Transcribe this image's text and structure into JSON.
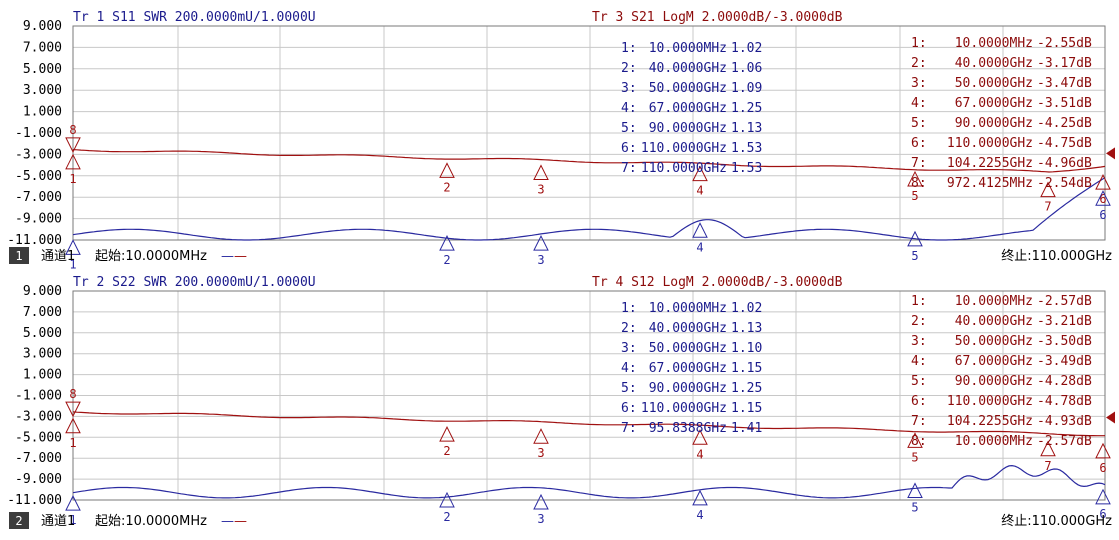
{
  "colors": {
    "trace_swr": "#2a2aa0",
    "trace_logm": "#a01010",
    "grid": "#c8c8c8",
    "frame": "#7a7a7a",
    "text_dark": "#000000",
    "blue_text": "#1a1a8c",
    "red_text": "#8c0a0a"
  },
  "y_ticks": [
    "9.000",
    "7.000",
    "5.000",
    "3.000",
    "1.000",
    "-1.000",
    "-3.000",
    "-5.000",
    "-7.000",
    "-9.000",
    "-11.000"
  ],
  "channels": [
    {
      "blue_header": "Tr 1  S11 SWR 200.0000mU/1.0000U",
      "red_header": "Tr 3  S21 LogM 2.0000dB/-3.0000dB",
      "status": {
        "badge": "1",
        "channel_label": "通道1",
        "start_label": "起始:10.0000MHz",
        "dash1": "—",
        "dash2": "—",
        "stop_label": "终止:110.000GHz"
      },
      "blue_markers": [
        {
          "n": "1:",
          "f": "10.0000MHz",
          "v": "1.02"
        },
        {
          "n": "2:",
          "f": "40.0000GHz",
          "v": "1.06"
        },
        {
          "n": "3:",
          "f": "50.0000GHz",
          "v": "1.09"
        },
        {
          "n": "4:",
          "f": "67.0000GHz",
          "v": "1.25"
        },
        {
          "n": "5:",
          "f": "90.0000GHz",
          "v": "1.13"
        },
        {
          "n": "6:",
          "f": "110.0000GHz",
          "v": "1.53"
        },
        {
          "n": "7:",
          "f": "110.0000GHz",
          "v": "1.53"
        }
      ],
      "red_markers": [
        {
          "n": "1:",
          "f": "10.0000MHz",
          "v": "-2.55dB"
        },
        {
          "n": "2:",
          "f": "40.0000GHz",
          "v": "-3.17dB"
        },
        {
          "n": "3:",
          "f": "50.0000GHz",
          "v": "-3.47dB"
        },
        {
          "n": "4:",
          "f": "67.0000GHz",
          "v": "-3.51dB"
        },
        {
          "n": "5:",
          "f": "90.0000GHz",
          "v": "-4.25dB"
        },
        {
          "n": "6:",
          "f": "110.0000GHz",
          "v": "-4.75dB"
        },
        {
          "n": "7:",
          "f": "104.2255GHz",
          "v": "-4.96dB"
        },
        {
          "n": "8:",
          "f": "972.4125MHz",
          "v": "-2.54dB"
        }
      ],
      "plot_marker_numbers": {
        "red": [
          "8",
          "1",
          "2",
          "3",
          "4",
          "5",
          "7",
          "6"
        ],
        "blue": [
          "1",
          "2",
          "3",
          "4",
          "5",
          "6"
        ]
      }
    },
    {
      "blue_header": "Tr 2  S22 SWR 200.0000mU/1.0000U",
      "red_header": "Tr 4  S12 LogM 2.0000dB/-3.0000dB",
      "status": {
        "badge": "2",
        "channel_label": "通道1",
        "start_label": "起始:10.0000MHz",
        "dash1": "—",
        "dash2": "—",
        "stop_label": "终止:110.000GHz"
      },
      "blue_markers": [
        {
          "n": "1:",
          "f": "10.0000MHz",
          "v": "1.02"
        },
        {
          "n": "2:",
          "f": "40.0000GHz",
          "v": "1.13"
        },
        {
          "n": "3:",
          "f": "50.0000GHz",
          "v": "1.10"
        },
        {
          "n": "4:",
          "f": "67.0000GHz",
          "v": "1.15"
        },
        {
          "n": "5:",
          "f": "90.0000GHz",
          "v": "1.25"
        },
        {
          "n": "6:",
          "f": "110.0000GHz",
          "v": "1.15"
        },
        {
          "n": "7:",
          "f": "95.8388GHz",
          "v": "1.41"
        }
      ],
      "red_markers": [
        {
          "n": "1:",
          "f": "10.0000MHz",
          "v": "-2.57dB"
        },
        {
          "n": "2:",
          "f": "40.0000GHz",
          "v": "-3.21dB"
        },
        {
          "n": "3:",
          "f": "50.0000GHz",
          "v": "-3.50dB"
        },
        {
          "n": "4:",
          "f": "67.0000GHz",
          "v": "-3.49dB"
        },
        {
          "n": "5:",
          "f": "90.0000GHz",
          "v": "-4.28dB"
        },
        {
          "n": "6:",
          "f": "110.0000GHz",
          "v": "-4.78dB"
        },
        {
          "n": "7:",
          "f": "104.2255GHz",
          "v": "-4.93dB"
        },
        {
          "n": "8:",
          "f": "10.0000MHz",
          "v": "-2.57dB"
        }
      ],
      "plot_marker_numbers": {
        "red": [
          "8",
          "1",
          "2",
          "3",
          "4",
          "5",
          "7",
          "6"
        ],
        "blue": [
          "1",
          "2",
          "3",
          "4",
          "5",
          "6"
        ]
      }
    }
  ]
}
